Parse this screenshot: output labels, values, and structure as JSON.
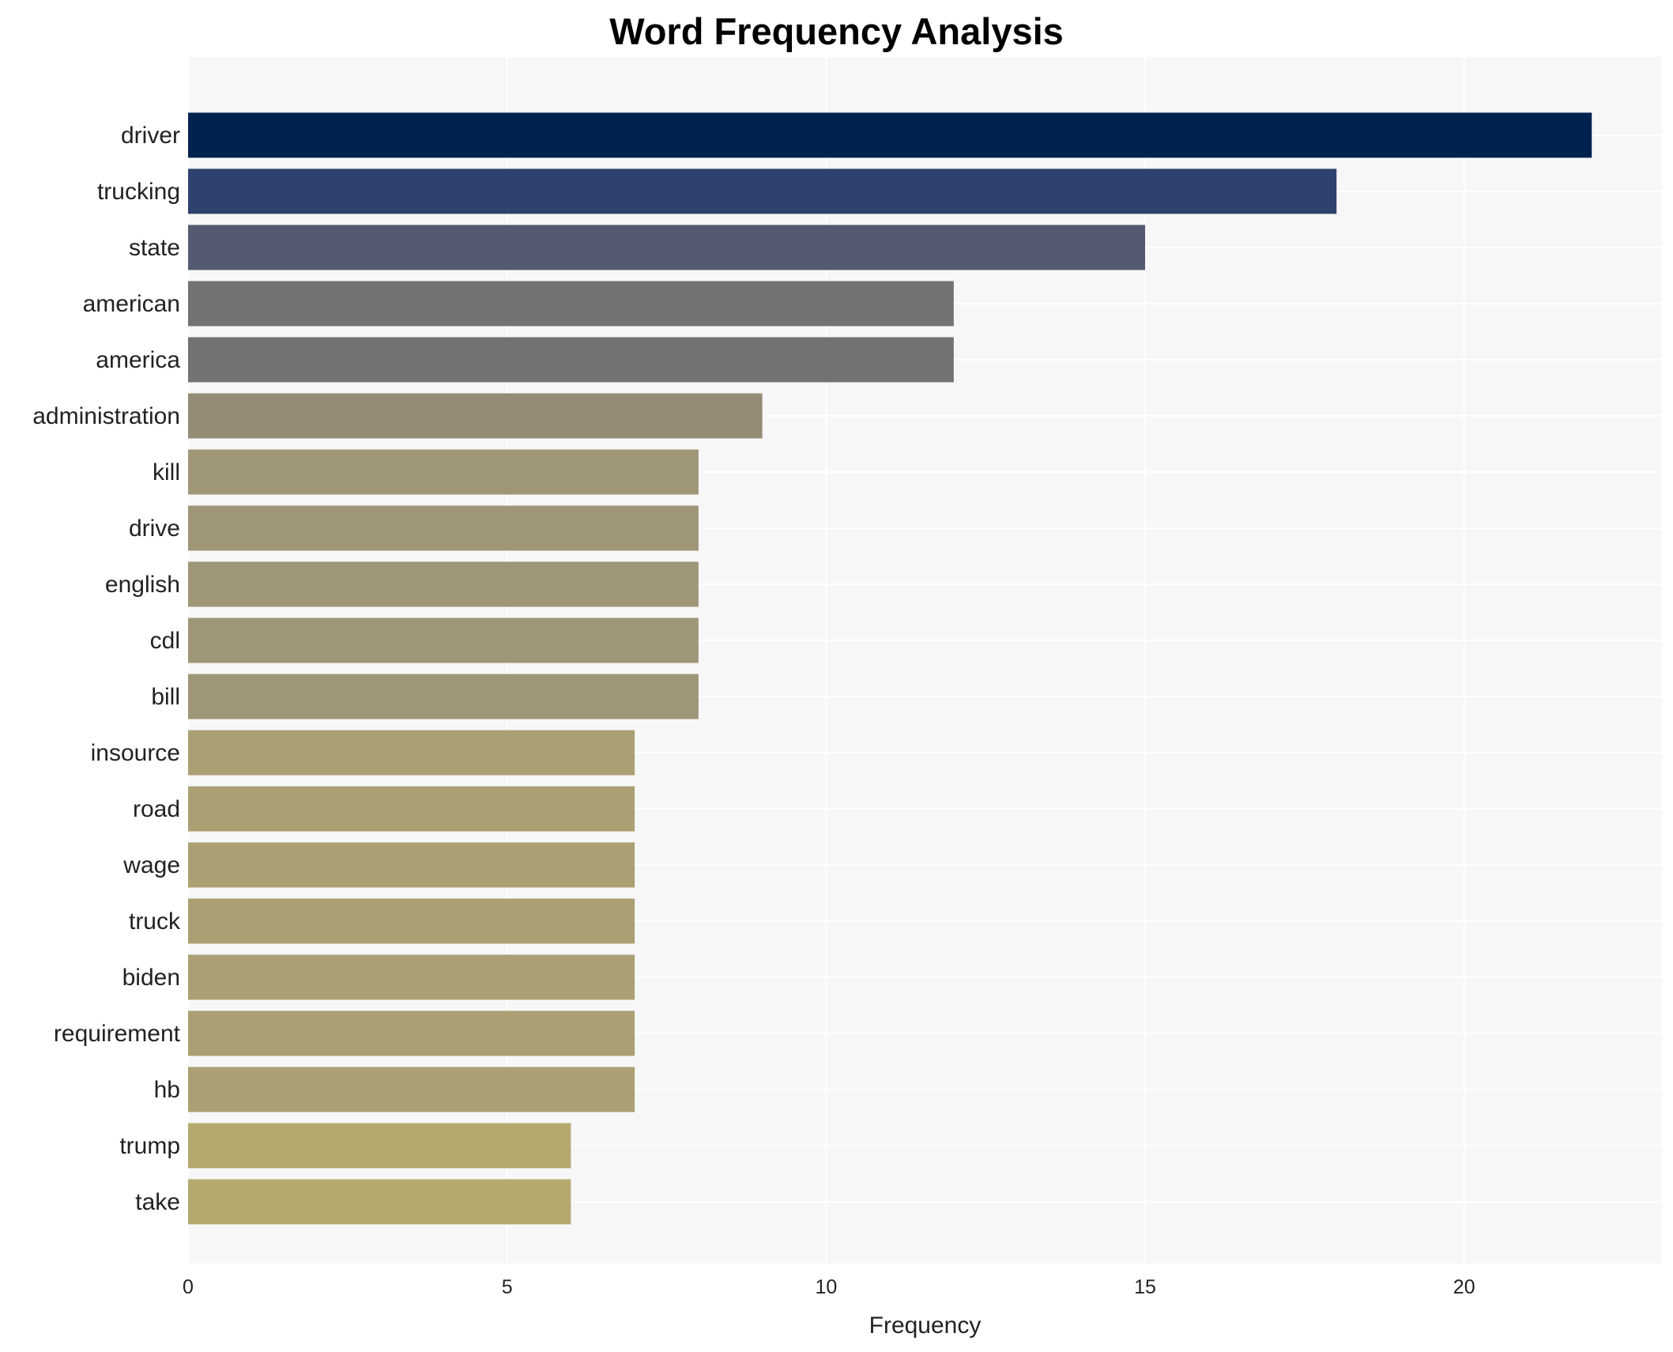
{
  "chart_data": {
    "type": "bar",
    "orientation": "horizontal",
    "title": "Word Frequency Analysis",
    "xlabel": "Frequency",
    "ylabel": "",
    "xlim": [
      0,
      23.1
    ],
    "xticks": [
      0,
      5,
      10,
      15,
      20
    ],
    "grid": true,
    "categories": [
      "driver",
      "trucking",
      "state",
      "american",
      "america",
      "administration",
      "kill",
      "drive",
      "english",
      "cdl",
      "bill",
      "insource",
      "road",
      "wage",
      "truck",
      "biden",
      "requirement",
      "hb",
      "trump",
      "take"
    ],
    "values": [
      22,
      18,
      15,
      12,
      12,
      9,
      8,
      8,
      8,
      8,
      8,
      7,
      7,
      7,
      7,
      7,
      7,
      7,
      6,
      6
    ],
    "colors": [
      "#00224e",
      "#2f416d",
      "#545a6f",
      "#727274",
      "#727274",
      "#948c77",
      "#9f9677",
      "#9f9677",
      "#9f9677",
      "#9f9677",
      "#9f9677",
      "#aba074",
      "#aba074",
      "#aba074",
      "#aba074",
      "#aba074",
      "#aba074",
      "#aba074",
      "#b5a96f",
      "#b5a96f"
    ],
    "background": "#f7f7f7"
  }
}
